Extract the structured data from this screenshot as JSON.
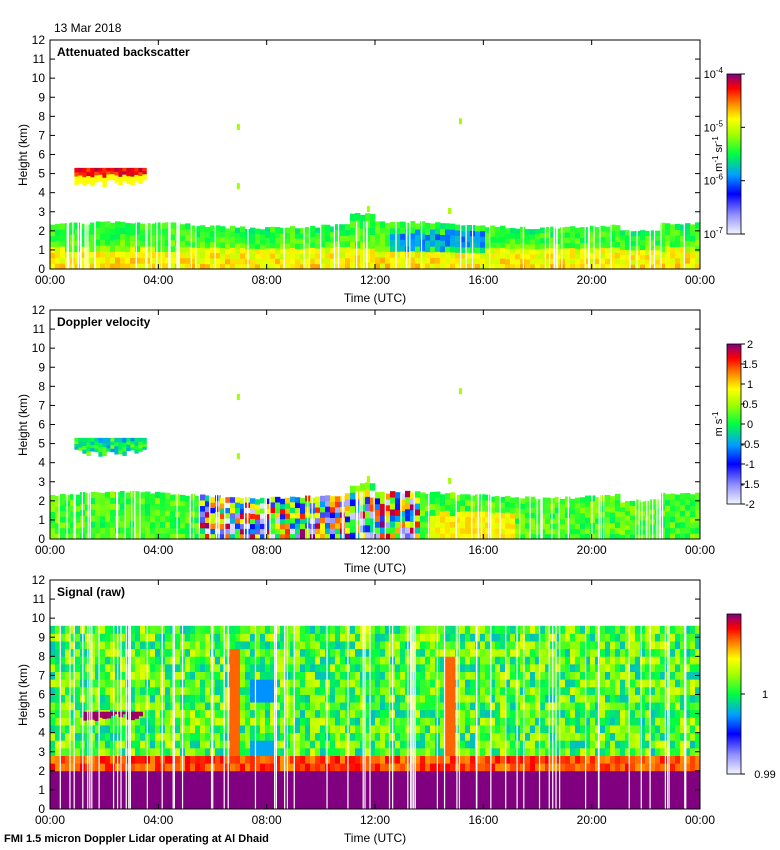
{
  "date_label": "13 Mar 2018",
  "footer_text": "FMI 1.5 micron Doppler Lidar operating at Al Dhaid",
  "chart_data": [
    {
      "type": "heatmap",
      "title": "Attenuated backscatter",
      "xlabel": "Time (UTC)",
      "ylabel": "Height (km)",
      "x_ticks": [
        "00:00",
        "04:00",
        "08:00",
        "12:00",
        "16:00",
        "20:00",
        "00:00"
      ],
      "y_ticks": [
        "0",
        "1",
        "2",
        "3",
        "4",
        "5",
        "6",
        "7",
        "8",
        "9",
        "10",
        "11",
        "12"
      ],
      "ylim": [
        0,
        12
      ],
      "xlim_hours": [
        0,
        24
      ],
      "colorbar": {
        "scale": "log",
        "ticks": [
          "10-7",
          "10-6",
          "10-5",
          "10-4"
        ],
        "tick_base": "10",
        "tick_exponents": [
          "-7",
          "-6",
          "-5",
          "-4"
        ],
        "unit_parts": [
          "m",
          "-1",
          " sr",
          "-1"
        ],
        "range": [
          1e-07,
          0.0001
        ]
      },
      "features": {
        "boundary_layer_top_km": 2.3,
        "elevated_layer": {
          "start_hour": 0.9,
          "end_hour": 3.6,
          "base_km": 4.3,
          "top_km": 5.3
        },
        "sparse_echoes_km": [
          7.6,
          7.9,
          4.4,
          3.2
        ]
      }
    },
    {
      "type": "heatmap",
      "title": "Doppler velocity",
      "xlabel": "Time (UTC)",
      "ylabel": "Height (km)",
      "x_ticks": [
        "00:00",
        "04:00",
        "08:00",
        "12:00",
        "16:00",
        "20:00",
        "00:00"
      ],
      "y_ticks": [
        "0",
        "1",
        "2",
        "3",
        "4",
        "5",
        "6",
        "7",
        "8",
        "9",
        "10",
        "11",
        "12"
      ],
      "ylim": [
        0,
        12
      ],
      "xlim_hours": [
        0,
        24
      ],
      "colorbar": {
        "scale": "linear",
        "ticks": [
          "2",
          "1.5",
          "1",
          "0.5",
          "0",
          "-0.5",
          "-1",
          "-1.5",
          "-2"
        ],
        "unit_parts": [
          "m",
          "",
          " s",
          "-1"
        ],
        "range": [
          -2,
          2
        ]
      },
      "features": {
        "boundary_layer_top_km": 2.3,
        "convective_period_hours": [
          5.5,
          13.5
        ],
        "elevated_layer": {
          "start_hour": 0.9,
          "end_hour": 3.6,
          "base_km": 4.3,
          "top_km": 5.3
        }
      }
    },
    {
      "type": "heatmap",
      "title": "Signal (raw)",
      "xlabel": "Time (UTC)",
      "ylabel": "Height (km)",
      "x_ticks": [
        "00:00",
        "04:00",
        "08:00",
        "12:00",
        "16:00",
        "20:00",
        "00:00"
      ],
      "y_ticks": [
        "0",
        "1",
        "2",
        "3",
        "4",
        "5",
        "6",
        "7",
        "8",
        "9",
        "10",
        "11",
        "12"
      ],
      "ylim": [
        0,
        12
      ],
      "xlim_hours": [
        0,
        24
      ],
      "colorbar": {
        "scale": "linear",
        "ticks": [
          "1",
          "0.99"
        ],
        "range": [
          0.99,
          1.01
        ]
      },
      "features": {
        "data_top_km": 9.6,
        "saturated_layer_top_km": 2.2,
        "elevated_layer": {
          "start_hour": 1.2,
          "end_hour": 3.4,
          "base_km": 4.6,
          "top_km": 5.1
        }
      }
    }
  ]
}
